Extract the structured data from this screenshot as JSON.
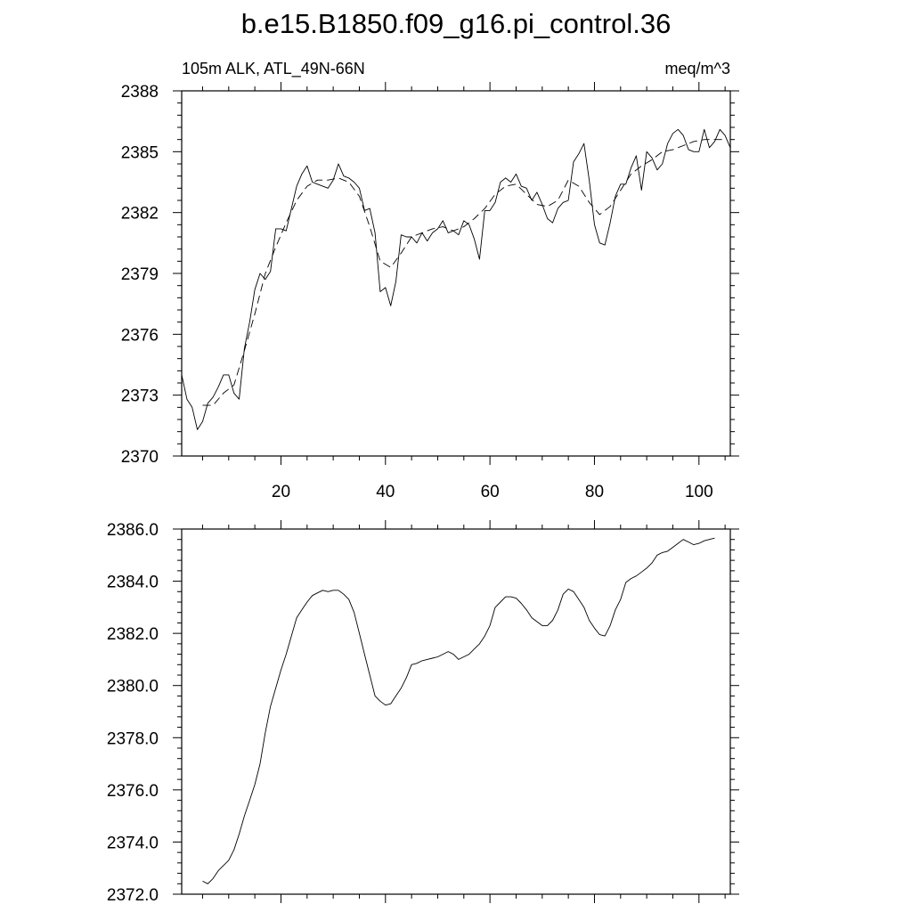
{
  "title": "b.e15.B1850.f09_g16.pi_control.36",
  "chart_data": [
    {
      "type": "line",
      "left_label": "105m ALK, ATL_49N-66N",
      "right_label": "meq/m^3",
      "xlim": [
        1,
        106
      ],
      "ylim": [
        2370,
        2388
      ],
      "x_ticks": [
        20,
        40,
        60,
        80,
        100
      ],
      "x_tick_labels": [
        "20",
        "40",
        "60",
        "80",
        "100"
      ],
      "y_ticks": [
        2370,
        2373,
        2376,
        2379,
        2382,
        2385,
        2388
      ],
      "y_tick_labels": [
        "2370",
        "2373",
        "2376",
        "2379",
        "2382",
        "2385",
        "2388"
      ],
      "grid": false,
      "series": [
        {
          "style": "solid",
          "x": [
            1,
            2,
            3,
            4,
            5,
            6,
            7,
            8,
            9,
            10,
            11,
            12,
            13,
            14,
            15,
            16,
            17,
            18,
            19,
            20,
            21,
            22,
            23,
            24,
            25,
            26,
            27,
            28,
            29,
            30,
            31,
            32,
            33,
            34,
            35,
            36,
            37,
            38,
            39,
            40,
            41,
            42,
            43,
            44,
            45,
            46,
            47,
            48,
            49,
            50,
            51,
            52,
            53,
            54,
            55,
            56,
            57,
            58,
            59,
            60,
            61,
            62,
            63,
            64,
            65,
            66,
            67,
            68,
            69,
            70,
            71,
            72,
            73,
            74,
            75,
            76,
            77,
            78,
            79,
            80,
            81,
            82,
            83,
            84,
            85,
            86,
            87,
            88,
            89,
            90,
            91,
            92,
            93,
            94,
            95,
            96,
            97,
            98,
            99,
            100,
            101,
            102,
            103,
            104,
            105,
            106
          ],
          "values": [
            2374.0,
            2372.8,
            2372.4,
            2371.3,
            2371.7,
            2372.6,
            2372.9,
            2373.4,
            2374.0,
            2374.0,
            2373.1,
            2372.8,
            2375.3,
            2376.6,
            2378.2,
            2379.0,
            2378.7,
            2379.1,
            2381.2,
            2381.2,
            2381.1,
            2382.2,
            2383.3,
            2383.9,
            2384.3,
            2383.5,
            2383.4,
            2383.3,
            2383.2,
            2383.6,
            2384.4,
            2383.8,
            2383.7,
            2383.5,
            2383.2,
            2382.1,
            2382.2,
            2381.0,
            2378.1,
            2378.3,
            2377.4,
            2378.6,
            2380.9,
            2380.8,
            2380.8,
            2380.5,
            2381.0,
            2380.6,
            2381.0,
            2381.2,
            2381.6,
            2381.0,
            2381.1,
            2380.9,
            2381.6,
            2381.4,
            2380.7,
            2379.7,
            2382.1,
            2382.1,
            2382.5,
            2383.5,
            2383.7,
            2383.5,
            2383.9,
            2383.3,
            2383.2,
            2382.6,
            2383.0,
            2382.4,
            2381.7,
            2381.5,
            2382.2,
            2382.5,
            2382.6,
            2384.5,
            2384.9,
            2385.4,
            2383.6,
            2381.4,
            2380.5,
            2380.4,
            2381.5,
            2382.8,
            2383.4,
            2383.4,
            2384.2,
            2384.8,
            2383.1,
            2385.0,
            2384.7,
            2384.1,
            2384.4,
            2385.4,
            2385.9,
            2386.1,
            2385.8,
            2385.1,
            2385.0,
            2385.0,
            2386.1,
            2385.2,
            2385.5,
            2386.1,
            2385.8,
            2385.2
          ]
        },
        {
          "style": "dashed",
          "x": [
            5,
            7,
            9,
            11,
            13,
            15,
            17,
            19,
            21,
            23,
            25,
            27,
            29,
            31,
            33,
            35,
            37,
            39,
            41,
            43,
            45,
            47,
            49,
            51,
            53,
            55,
            57,
            59,
            61,
            63,
            65,
            67,
            69,
            71,
            73,
            75,
            77,
            79,
            81,
            83,
            85,
            87,
            89,
            91,
            93,
            95,
            97,
            99,
            101,
            103,
            105
          ],
          "values": [
            2372.5,
            2372.5,
            2373.1,
            2373.5,
            2375.2,
            2377.0,
            2379.0,
            2380.3,
            2381.5,
            2382.6,
            2383.3,
            2383.6,
            2383.6,
            2383.7,
            2383.5,
            2382.8,
            2381.3,
            2379.6,
            2379.3,
            2380.0,
            2380.8,
            2381.0,
            2381.2,
            2381.3,
            2381.1,
            2381.3,
            2381.7,
            2382.2,
            2382.9,
            2383.3,
            2383.4,
            2382.9,
            2382.4,
            2382.3,
            2382.6,
            2383.6,
            2383.3,
            2382.5,
            2381.9,
            2382.3,
            2383.1,
            2383.9,
            2384.3,
            2384.6,
            2385.0,
            2385.1,
            2385.3,
            2385.5,
            2385.6,
            2385.6,
            2385.6
          ]
        }
      ]
    },
    {
      "type": "line",
      "xlim": [
        1,
        106
      ],
      "ylim": [
        2372.0,
        2386.0
      ],
      "x_ticks": [
        20,
        40,
        60,
        80,
        100
      ],
      "y_ticks": [
        2372.0,
        2374.0,
        2376.0,
        2378.0,
        2380.0,
        2382.0,
        2384.0,
        2386.0
      ],
      "y_tick_labels": [
        "2372.0",
        "2374.0",
        "2376.0",
        "2378.0",
        "2380.0",
        "2382.0",
        "2384.0",
        "2386.0"
      ],
      "grid": false,
      "series": [
        {
          "style": "solid",
          "x": [
            5,
            6,
            7,
            8,
            9,
            10,
            11,
            12,
            13,
            14,
            15,
            16,
            17,
            18,
            19,
            20,
            21,
            22,
            23,
            24,
            25,
            26,
            27,
            28,
            29,
            30,
            31,
            32,
            33,
            34,
            35,
            36,
            37,
            38,
            39,
            40,
            41,
            42,
            43,
            44,
            45,
            46,
            47,
            48,
            49,
            50,
            51,
            52,
            53,
            54,
            55,
            56,
            57,
            58,
            59,
            60,
            61,
            62,
            63,
            64,
            65,
            66,
            67,
            68,
            69,
            70,
            71,
            72,
            73,
            74,
            75,
            76,
            77,
            78,
            79,
            80,
            81,
            82,
            83,
            84,
            85,
            86,
            87,
            88,
            89,
            90,
            91,
            92,
            93,
            94,
            95,
            96,
            97,
            98,
            99,
            100,
            101,
            102,
            103
          ],
          "values": [
            2372.5,
            2372.4,
            2372.6,
            2372.9,
            2373.1,
            2373.3,
            2373.7,
            2374.3,
            2375.0,
            2375.6,
            2376.2,
            2377.0,
            2378.2,
            2379.2,
            2379.9,
            2380.6,
            2381.2,
            2381.9,
            2382.6,
            2382.9,
            2383.2,
            2383.45,
            2383.55,
            2383.65,
            2383.6,
            2383.65,
            2383.65,
            2383.5,
            2383.3,
            2382.8,
            2382.0,
            2381.2,
            2380.4,
            2379.6,
            2379.4,
            2379.25,
            2379.3,
            2379.6,
            2379.9,
            2380.3,
            2380.8,
            2380.85,
            2380.95,
            2381.0,
            2381.05,
            2381.1,
            2381.2,
            2381.3,
            2381.2,
            2381.0,
            2381.1,
            2381.2,
            2381.4,
            2381.6,
            2381.9,
            2382.3,
            2383.0,
            2383.2,
            2383.4,
            2383.4,
            2383.35,
            2383.15,
            2382.9,
            2382.6,
            2382.45,
            2382.3,
            2382.3,
            2382.5,
            2382.9,
            2383.5,
            2383.7,
            2383.6,
            2383.3,
            2383.0,
            2382.5,
            2382.2,
            2381.95,
            2381.9,
            2382.3,
            2382.9,
            2383.3,
            2383.95,
            2384.1,
            2384.2,
            2384.35,
            2384.5,
            2384.7,
            2385.0,
            2385.1,
            2385.15,
            2385.3,
            2385.45,
            2385.6,
            2385.5,
            2385.4,
            2385.45,
            2385.55,
            2385.6,
            2385.65
          ]
        }
      ]
    }
  ]
}
